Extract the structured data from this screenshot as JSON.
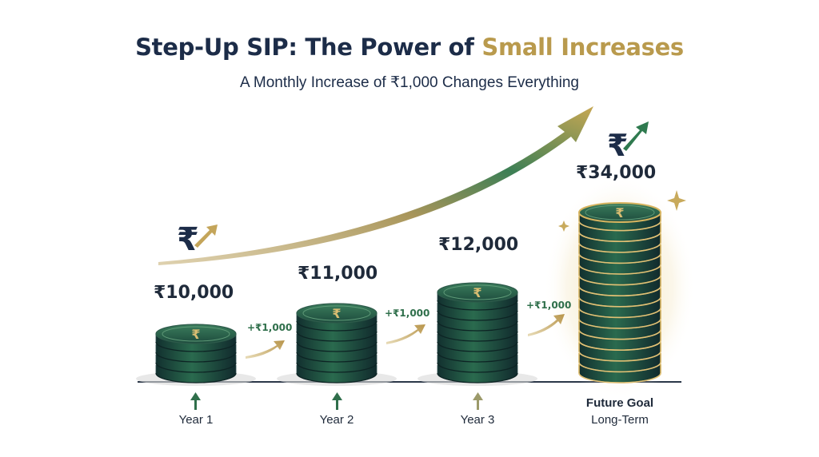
{
  "header": {
    "title_main": "Step-Up SIP: The Power of ",
    "title_highlight": "Small Increases",
    "subtitle": "A Monthly Increase of ₹1,000 Changes Everything"
  },
  "stacks": [
    {
      "amount": "₹10,000",
      "label": "Year 1"
    },
    {
      "amount": "₹11,000",
      "label": "Year 2"
    },
    {
      "amount": "₹12,000",
      "label": "Year 3"
    },
    {
      "amount": "₹34,000",
      "label": "Future Goal",
      "sublabel": "Long-Term"
    }
  ],
  "increments": [
    "+₹1,000",
    "+₹1,000",
    "+₹1,000"
  ],
  "icons": {
    "coin_symbol": "₹",
    "growth_icon": "rupee-growth-icon",
    "year_arrow": "up-arrow-icon",
    "sparkle": "sparkle-icon"
  },
  "colors": {
    "navy": "#1c2c48",
    "gold": "#b99a4d",
    "green": "#2f6f4b",
    "coin_dark": "#173a3a",
    "coin_mid": "#236048"
  }
}
